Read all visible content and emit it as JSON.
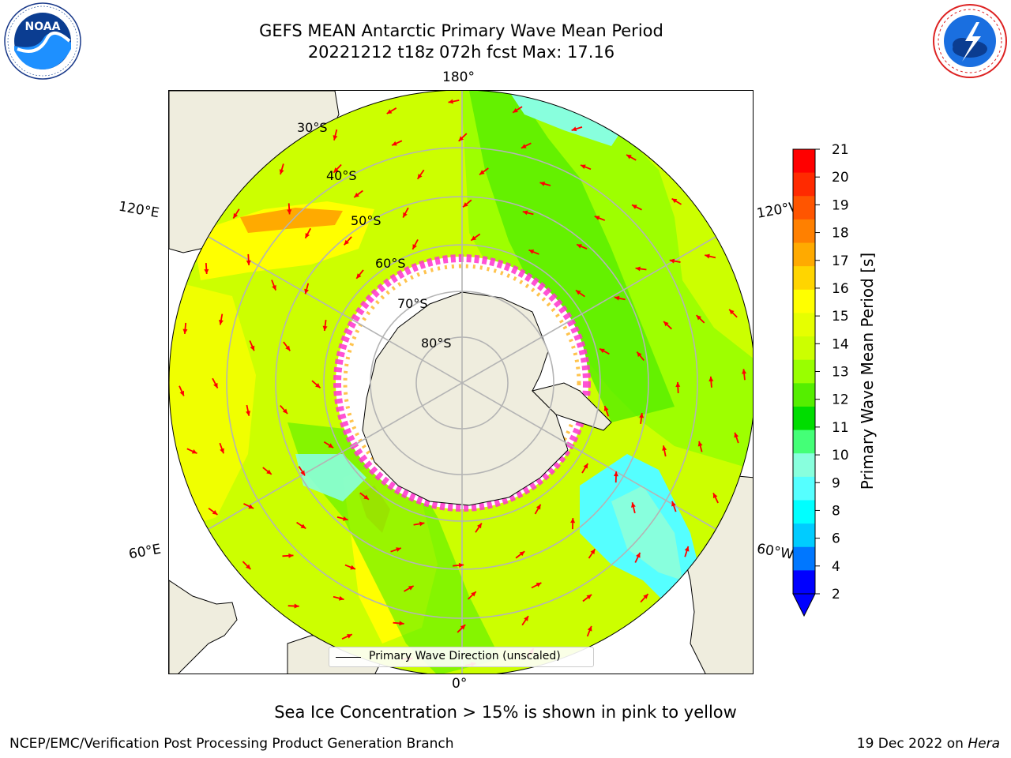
{
  "header": {
    "title_line1": "GEFS MEAN Antarctic Primary Wave Mean Period",
    "title_line2": "20221212 t18z 072h fcst   Max: 17.16"
  },
  "logos": {
    "left": {
      "name": "noaa-logo",
      "text": "NOAA",
      "ring_text": "NATIONAL OCEANIC AND ATMOSPHERIC ADMINISTRATION · U.S. DEPARTMENT OF COMMERCE"
    },
    "right": {
      "name": "nws-logo",
      "ring_text": "NATIONAL WEATHER SERVICE"
    }
  },
  "map": {
    "projection": "south-polar-stereographic",
    "longitude_labels": {
      "top": "180°",
      "bottom": "0°",
      "upper_left": "120°E",
      "upper_right": "120°W",
      "lower_left": "60°E",
      "lower_right": "60°W"
    },
    "latitude_labels": [
      "30°S",
      "40°S",
      "50°S",
      "60°S",
      "70°S",
      "80°S"
    ],
    "legend_text": "Primary Wave Direction (unscaled)",
    "colors": {
      "land": "#efedde",
      "ice": "#ffffff",
      "arrows": "#ff0000",
      "grid": "#b4b4b4",
      "ice_edge": "#ff33cc"
    }
  },
  "colorbar": {
    "label": "Primary Wave Mean Period [s]",
    "ticks": [
      "21",
      "20",
      "19",
      "18",
      "17",
      "16",
      "15",
      "14",
      "13",
      "12",
      "11",
      "10",
      "9",
      "8",
      "6",
      "4",
      "2"
    ],
    "colors_top_to_bottom": [
      "#ff0000",
      "#ff2a00",
      "#ff5500",
      "#ff8000",
      "#ffaa00",
      "#ffd500",
      "#ffff00",
      "#e6ff00",
      "#ccff00",
      "#99ff00",
      "#55ee00",
      "#00dd00",
      "#44ff77",
      "#88ffdd",
      "#55ffff",
      "#00ffff",
      "#00ccff",
      "#0077ff",
      "#0000ff"
    ],
    "extend": "min"
  },
  "subtitle": "Sea Ice Concentration > 15% is shown in pink to yellow",
  "footer": {
    "left": "NCEP/EMC/Verification Post Processing Product Generation Branch",
    "right_date": "19 Dec 2022 on ",
    "right_machine": "Hera"
  }
}
